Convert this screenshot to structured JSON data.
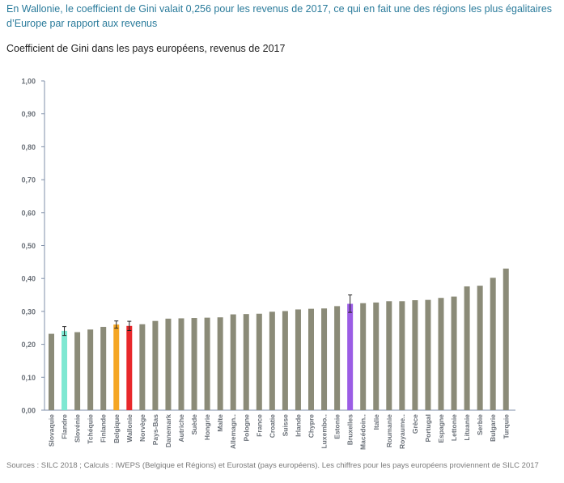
{
  "headline": "En Wallonie, le coefficient de Gini valait 0,256 pour les revenus de 2017, ce qui en fait une des régions les plus égalitaires d’Europe par rapport aux revenus",
  "chart_data": {
    "type": "bar",
    "title": "Coefficient de Gini dans les pays européens, revenus de 2017",
    "xlabel": "",
    "ylabel": "",
    "ylim": [
      0,
      1
    ],
    "yticks": [
      "0,00",
      "0,10",
      "0,20",
      "0,30",
      "0,40",
      "0,50",
      "0,60",
      "0,70",
      "0,80",
      "0,90",
      "1,00"
    ],
    "grid": false,
    "colors": {
      "default": "#8b8b78",
      "Flandre": "#7fe8d2",
      "Belgique": "#f5a623",
      "Wallonie": "#e8282b",
      "Bruxelles": "#9b5de5"
    },
    "categories": [
      "Slovaquie",
      "Flandre",
      "Slovénie",
      "Tchéquie",
      "Finlande",
      "Belgique",
      "Wallonie",
      "Norvège",
      "Pays-Bas",
      "Danemark",
      "Autriche",
      "Suède",
      "Hongrie",
      "Malte",
      "Allemagn..",
      "Pologne",
      "France",
      "Croatie",
      "Suisse",
      "Irlande",
      "Chypre",
      "Luxembo..",
      "Estonie",
      "Bruxelles",
      "Macédoin..",
      "Italie",
      "Roumanie",
      "Royaume..",
      "Grèce",
      "Portugal",
      "Espagne",
      "Lettonie",
      "Lituanie",
      "Serbie",
      "Bulgarie",
      "Turquie"
    ],
    "values": [
      0.232,
      0.241,
      0.237,
      0.245,
      0.253,
      0.26,
      0.256,
      0.261,
      0.271,
      0.278,
      0.279,
      0.28,
      0.281,
      0.282,
      0.291,
      0.292,
      0.293,
      0.299,
      0.301,
      0.306,
      0.308,
      0.309,
      0.316,
      0.323,
      0.325,
      0.327,
      0.331,
      0.331,
      0.334,
      0.335,
      0.341,
      0.345,
      0.376,
      0.378,
      0.402,
      0.43
    ],
    "error_bars": {
      "Flandre": [
        0.227,
        0.254
      ],
      "Belgique": [
        0.249,
        0.271
      ],
      "Wallonie": [
        0.242,
        0.27
      ],
      "Bruxelles": [
        0.297,
        0.35
      ]
    }
  },
  "source": "Sources : SILC 2018 ; Calculs : IWEPS (Belgique et Régions) et Eurostat (pays européens). Les chiffres pour les pays européens proviennent de SILC 2017"
}
